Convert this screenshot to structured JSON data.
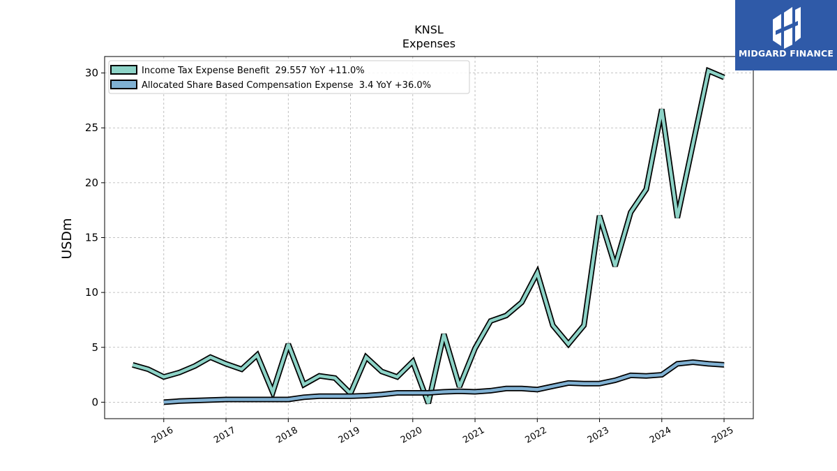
{
  "chart_data": {
    "type": "line",
    "title": "KNSL",
    "subtitle": "Expenses",
    "ylabel": "USDm",
    "xlabel": "",
    "ylim": [
      -1.5,
      31.5
    ],
    "xlim": [
      2015.05,
      2025.47
    ],
    "x_ticks": [
      {
        "value": 2016,
        "label": "2016"
      },
      {
        "value": 2017,
        "label": "2017"
      },
      {
        "value": 2018,
        "label": "2018"
      },
      {
        "value": 2019,
        "label": "2019"
      },
      {
        "value": 2020,
        "label": "2020"
      },
      {
        "value": 2021,
        "label": "2021"
      },
      {
        "value": 2022,
        "label": "2022"
      },
      {
        "value": 2023,
        "label": "2023"
      },
      {
        "value": 2024,
        "label": "2024"
      },
      {
        "value": 2025,
        "label": "2025"
      }
    ],
    "y_ticks": [
      0,
      5,
      10,
      15,
      20,
      25,
      30
    ],
    "grid": true,
    "legend_position": "top-left",
    "series": [
      {
        "name": "Income Tax Expense Benefit  29.557 YoY +11.0%",
        "color": "#8dd3c7",
        "x": [
          2015.5,
          2015.75,
          2016.0,
          2016.25,
          2016.5,
          2016.75,
          2017.0,
          2017.25,
          2017.5,
          2017.75,
          2018.0,
          2018.25,
          2018.5,
          2018.75,
          2019.0,
          2019.25,
          2019.5,
          2019.75,
          2020.0,
          2020.25,
          2020.5,
          2020.75,
          2021.0,
          2021.25,
          2021.5,
          2021.75,
          2022.0,
          2022.25,
          2022.5,
          2022.75,
          2023.0,
          2023.25,
          2023.5,
          2023.75,
          2024.0,
          2024.25,
          2024.5,
          2024.75,
          2025.0
        ],
        "values": [
          3.4,
          3.0,
          2.3,
          2.7,
          3.3,
          4.1,
          3.5,
          3.0,
          4.3,
          0.9,
          5.3,
          1.6,
          2.4,
          2.2,
          0.8,
          4.1,
          2.8,
          2.3,
          3.7,
          -0.1,
          6.2,
          1.4,
          4.9,
          7.4,
          7.9,
          9.1,
          11.8,
          7.0,
          5.3,
          7.0,
          17.0,
          12.4,
          17.3,
          19.4,
          26.7,
          16.8,
          23.5,
          30.2,
          29.6
        ]
      },
      {
        "name": "Allocated Share Based Compensation Expense  3.4 YoY +36.0%",
        "color": "#80b1d3",
        "x": [
          2016.0,
          2016.25,
          2016.5,
          2016.75,
          2017.0,
          2017.25,
          2017.5,
          2017.75,
          2018.0,
          2018.25,
          2018.5,
          2018.75,
          2019.0,
          2019.25,
          2019.5,
          2019.75,
          2020.0,
          2020.25,
          2020.5,
          2020.75,
          2021.0,
          2021.25,
          2021.5,
          2021.75,
          2022.0,
          2022.25,
          2022.5,
          2022.75,
          2023.0,
          2023.25,
          2023.5,
          2023.75,
          2024.0,
          2024.25,
          2024.5,
          2024.75,
          2025.0
        ],
        "values": [
          0.0,
          0.1,
          0.15,
          0.2,
          0.25,
          0.25,
          0.25,
          0.25,
          0.25,
          0.45,
          0.55,
          0.55,
          0.55,
          0.6,
          0.7,
          0.85,
          0.85,
          0.85,
          0.95,
          1.0,
          0.95,
          1.05,
          1.25,
          1.25,
          1.15,
          1.45,
          1.75,
          1.7,
          1.7,
          2.0,
          2.45,
          2.4,
          2.5,
          3.5,
          3.65,
          3.5,
          3.4
        ]
      }
    ]
  },
  "logo": {
    "text": "MIDGARD FINANCE",
    "background": "#2f5aa8"
  }
}
